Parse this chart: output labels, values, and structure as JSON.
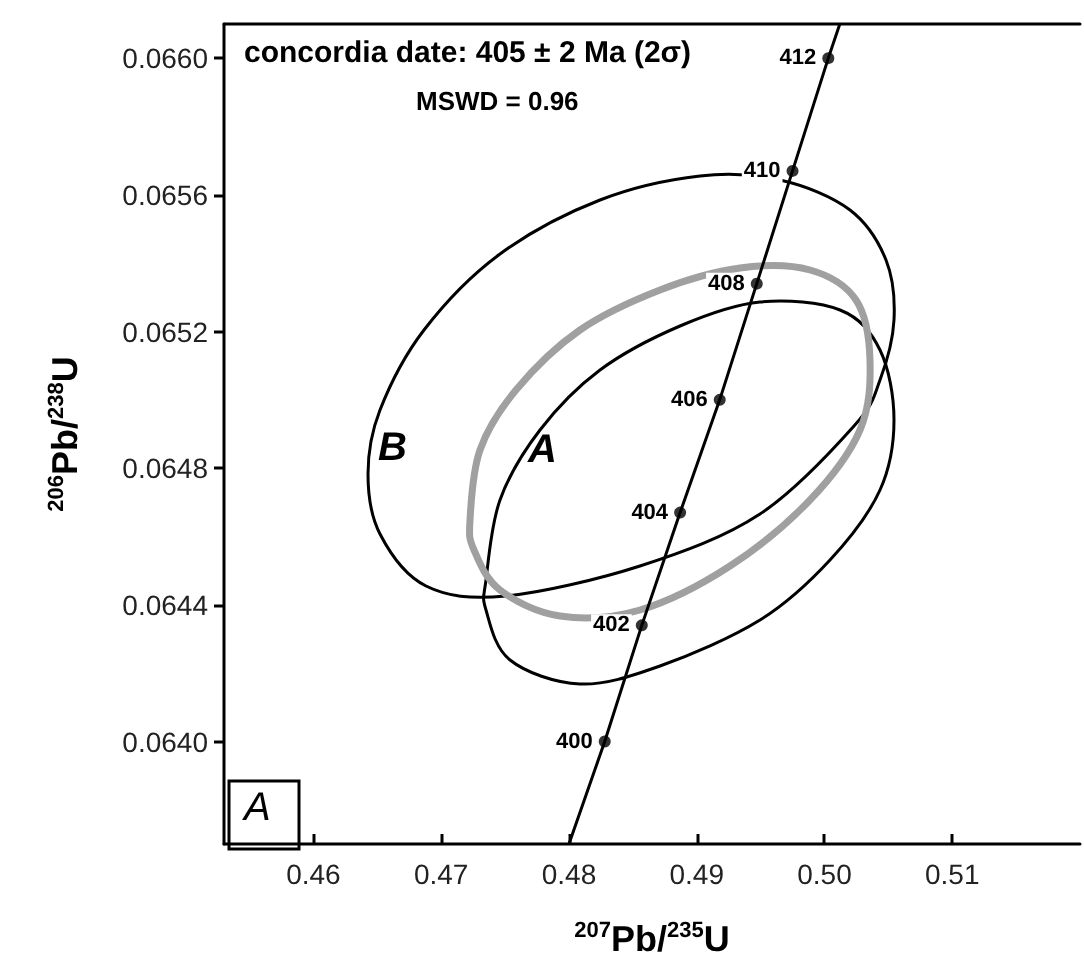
{
  "chart_data": {
    "type": "line",
    "title": "A",
    "xlabel": "$^{207}$Pb/$^{235}$U",
    "ylabel": "$^{206}$Pb/$^{238}$U",
    "annotations": [
      "concordia date: 405 ± 2 Ma (2σ)",
      "MSWD = 0.96",
      "B",
      "A",
      {
        "text": "400",
        "x": 0.4828,
        "y": 0.064
      },
      {
        "text": "402",
        "x": 0.4857,
        "y": 0.06434
      },
      {
        "text": "404",
        "x": 0.4887,
        "y": 0.06467
      },
      {
        "text": "406",
        "x": 0.4918,
        "y": 0.065
      },
      {
        "text": "408",
        "x": 0.4947,
        "y": 0.06534
      },
      {
        "text": "410",
        "x": 0.4975,
        "y": 0.06567
      },
      {
        "text": "412",
        "x": 0.5003,
        "y": 0.066
      }
    ],
    "xlim": [
      0.453,
      0.52
    ],
    "ylim": [
      0.0637,
      0.0661
    ],
    "xticks": [
      {
        "value": 0.46,
        "label": "0.46"
      },
      {
        "value": 0.47,
        "label": "0.47"
      },
      {
        "value": 0.48,
        "label": "0.48"
      },
      {
        "value": 0.49,
        "label": "0.49"
      },
      {
        "value": 0.5,
        "label": "0.50"
      },
      {
        "value": 0.51,
        "label": "0.51"
      }
    ],
    "yticks": [
      {
        "value": 0.064,
        "label": "0.0640"
      },
      {
        "value": 0.0644,
        "label": "0.0644"
      },
      {
        "value": 0.0648,
        "label": "0.0648"
      },
      {
        "value": 0.0652,
        "label": "0.0652"
      },
      {
        "value": 0.0656,
        "label": "0.0656"
      },
      {
        "value": 0.066,
        "label": "0.0660"
      }
    ],
    "grid": false,
    "line_style": "solid",
    "series": [
      {
        "color": "#000000",
        "x": [
          0.48,
          0.4828,
          0.4857,
          0.4887,
          0.4918,
          0.4947,
          0.4975,
          0.5003,
          0.5012
        ],
        "values": [
          0.0637,
          0.064,
          0.06434,
          0.06467,
          0.065,
          0.06534,
          0.06567,
          0.066,
          0.0661
        ]
      },
      {
        "type": "scatter",
        "color": "#000000",
        "x": [
          0.4828,
          0.4857,
          0.4887,
          0.4918,
          0.4947,
          0.4975,
          0.5003
        ],
        "values": [
          0.064,
          0.06434,
          0.06467,
          0.065,
          0.06534,
          0.06567,
          0.066
        ]
      }
    ]
  }
}
